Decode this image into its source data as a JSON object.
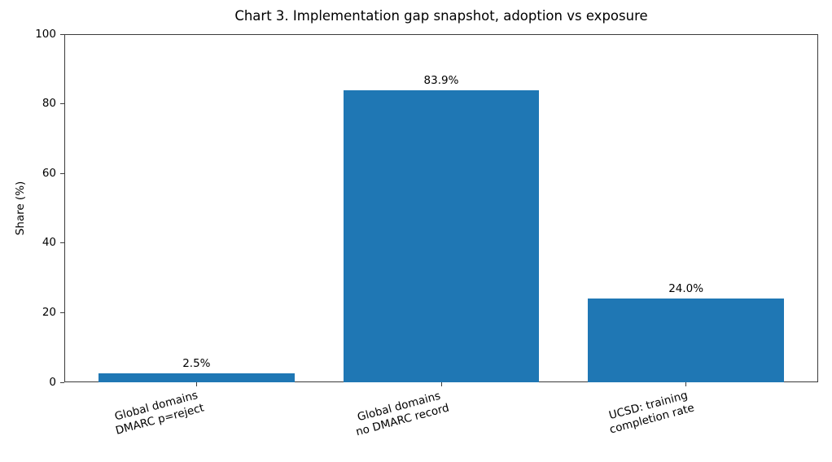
{
  "chart_data": {
    "type": "bar",
    "title": "Chart 3. Implementation gap snapshot, adoption vs exposure",
    "categories": [
      "Global domains\nDMARC p=reject",
      "Global domains\nno DMARC record",
      "UCSD: training\ncompletion rate"
    ],
    "values": [
      2.5,
      83.9,
      24.0
    ],
    "bar_labels": [
      "2.5%",
      "83.9%",
      "24.0%"
    ],
    "xlabel": "",
    "ylabel": "Share (%)",
    "ylim": [
      0,
      100
    ],
    "yticks": [
      0,
      20,
      40,
      60,
      80,
      100
    ],
    "bar_color": "#1f77b4",
    "bar_width_fraction": 0.8,
    "xtick_rotation_deg": 15,
    "grid": false,
    "legend": null
  }
}
